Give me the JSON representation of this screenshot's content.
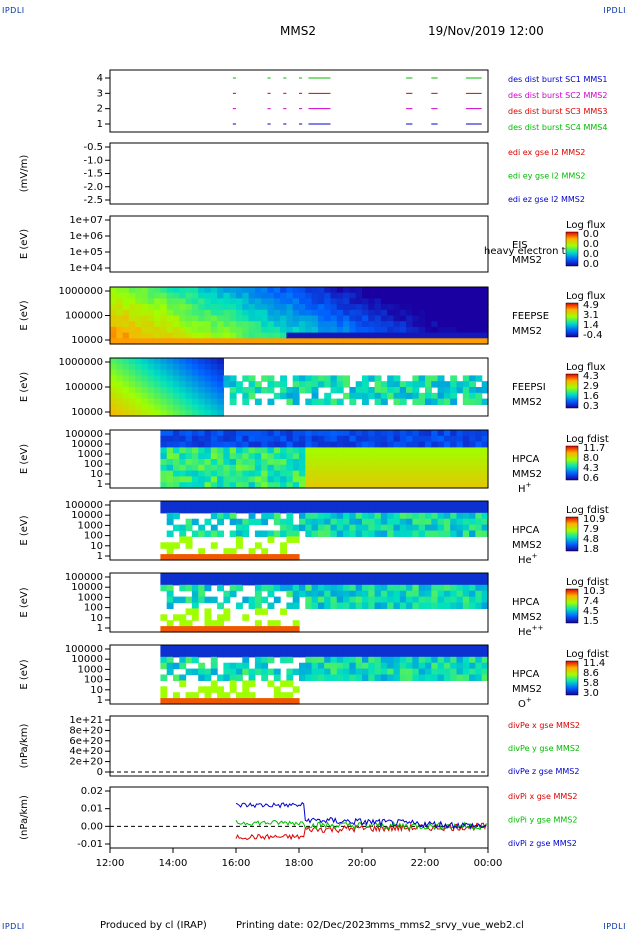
{
  "header": {
    "corner_tl": "IPDLI",
    "corner_tr": "IPDLI",
    "corner_bl": "IPDLI",
    "corner_br": "IPDLI",
    "title": "MMS2",
    "datetime": "19/Nov/2019 12:00"
  },
  "footer": {
    "produced_by": "Produced by cl (IRAP)",
    "printing_date": "Printing date: 02/Dec/2023",
    "filename": "mms_mms2_srvy_vue_web2.cl"
  },
  "chart_data": [
    {
      "type": "timeline",
      "ticks": [
        "1",
        "2",
        "3",
        "4"
      ],
      "legend": [
        {
          "label": "des dist burst SC1 MMS1",
          "color": "#0000cc"
        },
        {
          "label": "des dist burst SC2 MMS2",
          "color": "#cc00cc"
        },
        {
          "label": "des dist burst SC3 MMS3",
          "color": "#dd0000"
        },
        {
          "label": "des dist burst SC4 MMS4",
          "color": "#00bb00"
        }
      ],
      "intervals_hours": [
        [
          15.9,
          16.0
        ],
        [
          17.0,
          17.1
        ],
        [
          17.5,
          17.6
        ],
        [
          18.0,
          18.1
        ],
        [
          18.3,
          19.0
        ],
        [
          21.4,
          21.6
        ],
        [
          22.2,
          22.4
        ],
        [
          23.3,
          23.8
        ]
      ]
    },
    {
      "type": "line",
      "ylabel": "(mV/m)",
      "ticks": [
        "-0.5",
        "-1.0",
        "-1.5",
        "-2.0",
        "-2.5"
      ],
      "legend": [
        {
          "label": "edi ex gse l2 MMS2",
          "color": "#dd0000"
        },
        {
          "label": "edi ey gse l2 MMS2",
          "color": "#00bb00"
        },
        {
          "label": "edi ez gse l2 MMS2",
          "color": "#0000cc"
        }
      ]
    },
    {
      "type": "heatmap",
      "ylabel": "E (eV)",
      "ticks": [
        "1e+07",
        "1e+06",
        "1e+05",
        "1e+04"
      ],
      "instrument": "EIS",
      "overlay": "heavy electron to",
      "sc": "MMS2",
      "cbar_title": "Log flux",
      "cbar_ticks": [
        "0.0",
        "0.0",
        "0.0",
        "0.0"
      ]
    },
    {
      "type": "heatmap",
      "ylabel": "E (eV)",
      "ticks": [
        "1000000",
        "100000",
        "10000"
      ],
      "instrument": "FEEPSE",
      "sc": "MMS2",
      "cbar_title": "Log flux",
      "cbar_ticks": [
        "4.9",
        "3.1",
        "1.4",
        "-0.4"
      ]
    },
    {
      "type": "heatmap",
      "ylabel": "E (eV)",
      "ticks": [
        "1000000",
        "100000",
        "10000"
      ],
      "instrument": "FEEPSI",
      "sc": "MMS2",
      "cbar_title": "Log flux",
      "cbar_ticks": [
        "4.3",
        "2.9",
        "1.6",
        "0.3"
      ]
    },
    {
      "type": "heatmap",
      "ylabel": "E (eV)",
      "ticks": [
        "100000",
        "10000",
        "1000",
        "100",
        "10",
        "1"
      ],
      "instrument": "HPCA",
      "sc": "MMS2",
      "species": "H",
      "species_sup": "+",
      "cbar_title": "Log fdist",
      "cbar_ticks": [
        "11.7",
        "8.0",
        "4.3",
        "0.6"
      ]
    },
    {
      "type": "heatmap",
      "ylabel": "E (eV)",
      "ticks": [
        "100000",
        "10000",
        "1000",
        "100",
        "10",
        "1"
      ],
      "instrument": "HPCA",
      "sc": "MMS2",
      "species": "He",
      "species_sup": "+",
      "cbar_title": "Log fdist",
      "cbar_ticks": [
        "10.9",
        "7.9",
        "4.8",
        "1.8"
      ]
    },
    {
      "type": "heatmap",
      "ylabel": "E (eV)",
      "ticks": [
        "100000",
        "10000",
        "1000",
        "100",
        "10",
        "1"
      ],
      "instrument": "HPCA",
      "sc": "MMS2",
      "species": "He",
      "species_sup": "++",
      "cbar_title": "Log fdist",
      "cbar_ticks": [
        "10.3",
        "7.4",
        "4.5",
        "1.5"
      ]
    },
    {
      "type": "heatmap",
      "ylabel": "E (eV)",
      "ticks": [
        "100000",
        "10000",
        "1000",
        "100",
        "10",
        "1"
      ],
      "instrument": "HPCA",
      "sc": "MMS2",
      "species": "O",
      "species_sup": "+",
      "cbar_title": "Log fdist",
      "cbar_ticks": [
        "11.4",
        "8.6",
        "5.8",
        "3.0"
      ]
    },
    {
      "type": "line",
      "ylabel": "(nPa/km)",
      "ticks": [
        "1e+21",
        "8e+20",
        "6e+20",
        "4e+20",
        "2e+20",
        "0"
      ],
      "legend": [
        {
          "label": "divPe x gse MMS2",
          "color": "#dd0000"
        },
        {
          "label": "divPe y gse MMS2",
          "color": "#00bb00"
        },
        {
          "label": "divPe z gse MMS2",
          "color": "#0000cc"
        }
      ]
    },
    {
      "type": "line",
      "ylabel": "(nPa/km)",
      "ticks": [
        "0.02",
        "0.01",
        "0.00",
        "-0.01"
      ],
      "legend": [
        {
          "label": "divPi x gse MMS2",
          "color": "#dd0000"
        },
        {
          "label": "divPi y gse MMS2",
          "color": "#00bb00"
        },
        {
          "label": "divPi z gse MMS2",
          "color": "#0000cc"
        }
      ],
      "series_levels": {
        "x": -0.006,
        "y": 0.002,
        "z": 0.012
      }
    }
  ],
  "xaxis": {
    "ticks": [
      "12:00",
      "14:00",
      "16:00",
      "18:00",
      "20:00",
      "22:00",
      "00:00"
    ],
    "range_hours": [
      12,
      24
    ]
  }
}
